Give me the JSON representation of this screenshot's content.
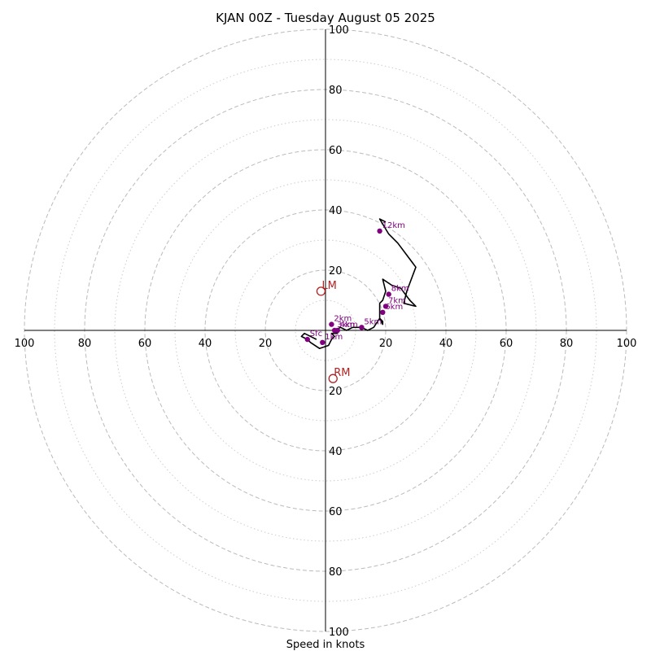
{
  "chart_data": {
    "type": "hodograph",
    "title": "KJAN 00Z - Tuesday August 05 2025",
    "xlabel": "Speed in knots",
    "ylabel": "",
    "max_speed": 100,
    "major_rings": [
      20,
      40,
      60,
      80,
      100
    ],
    "minor_rings": [
      10,
      30,
      50,
      70,
      90
    ],
    "tick_labels": [
      "100",
      "80",
      "60",
      "40",
      "20",
      "20",
      "40",
      "60",
      "80",
      "100"
    ],
    "grid": true,
    "colors": {
      "trace": "#000000",
      "level_marker": "#800080",
      "storm_motion": "#b22222",
      "grid": "#bbbbbb",
      "axis": "#000000"
    },
    "trace": [
      [
        -3,
        -3
      ],
      [
        -7,
        -1
      ],
      [
        -8,
        -2
      ],
      [
        -6,
        -3
      ],
      [
        -5,
        -4
      ],
      [
        -2,
        -6
      ],
      [
        1,
        -5
      ],
      [
        2,
        -3
      ],
      [
        3,
        -2
      ],
      [
        2,
        -1
      ],
      [
        4,
        -1
      ],
      [
        3,
        0
      ],
      [
        5,
        1
      ],
      [
        7,
        0
      ],
      [
        9,
        1
      ],
      [
        12,
        1
      ],
      [
        14,
        0
      ],
      [
        16,
        1
      ],
      [
        18,
        4
      ],
      [
        19,
        3
      ],
      [
        19,
        2
      ],
      [
        18,
        4
      ],
      [
        18,
        9
      ],
      [
        19,
        10
      ],
      [
        20,
        13
      ],
      [
        19,
        17
      ],
      [
        22,
        15
      ],
      [
        25,
        14
      ],
      [
        28,
        10
      ],
      [
        30,
        8
      ],
      [
        26,
        9
      ],
      [
        27,
        13
      ],
      [
        30,
        21
      ],
      [
        27,
        25
      ],
      [
        24,
        29
      ],
      [
        21,
        32
      ],
      [
        18,
        37
      ],
      [
        20,
        36
      ]
    ],
    "levels": [
      {
        "label": "Sfc",
        "u": -6,
        "v": -3
      },
      {
        "label": "1km",
        "u": -1,
        "v": -4
      },
      {
        "label": "2km",
        "u": 2,
        "v": 2
      },
      {
        "label": "3km",
        "u": 3,
        "v": 0
      },
      {
        "label": "4km",
        "u": 4,
        "v": 0
      },
      {
        "label": "5km",
        "u": 12,
        "v": 1
      },
      {
        "label": "6km",
        "u": 19,
        "v": 6
      },
      {
        "label": "7km",
        "u": 20,
        "v": 8
      },
      {
        "label": "8km",
        "u": 21,
        "v": 12
      },
      {
        "label": "12km",
        "u": 18,
        "v": 33
      }
    ],
    "storm_motion": [
      {
        "label": "LM",
        "u": -1.5,
        "v": 13
      },
      {
        "label": "RM",
        "u": 2.5,
        "v": -16
      }
    ]
  }
}
